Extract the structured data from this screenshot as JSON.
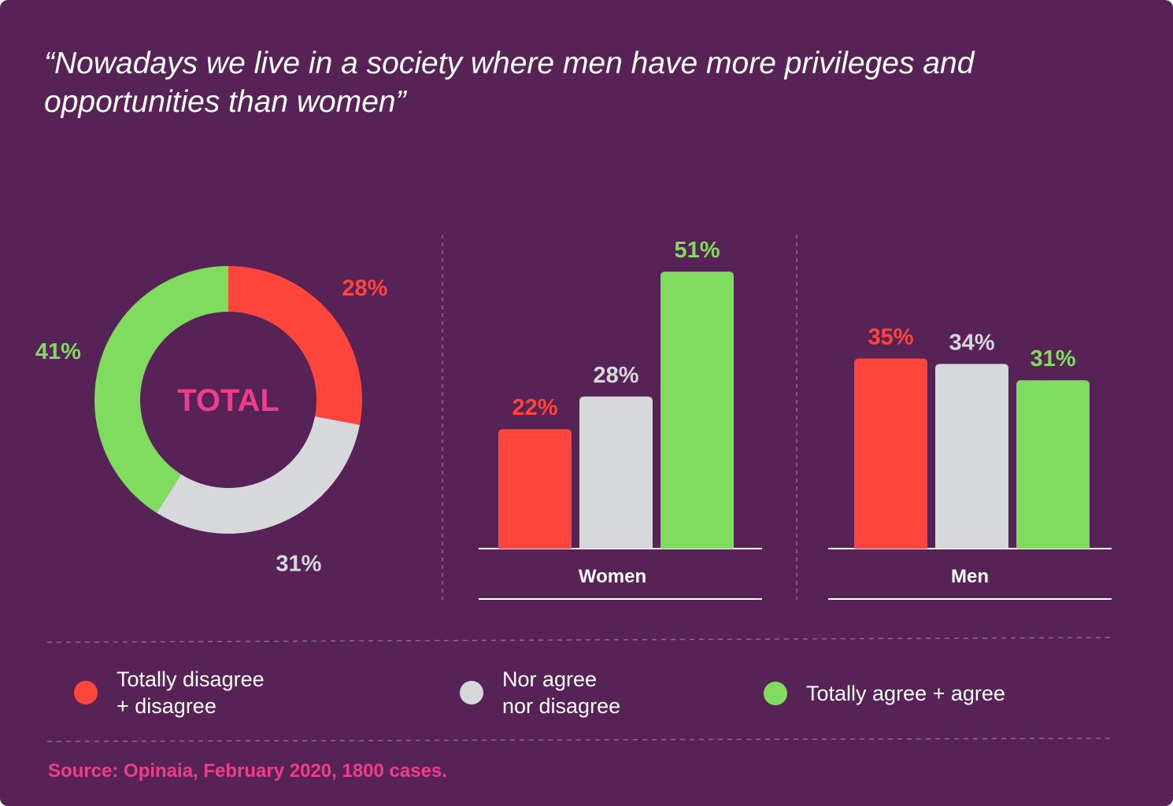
{
  "title": "“Nowadays we live in a society where men have more privileges and opportunities than women”",
  "colors": {
    "background": "#572256",
    "disagree": "#ff453c",
    "neutral": "#d7d8dc",
    "agree": "#80dc5f",
    "accent": "#ee3e8b"
  },
  "legend": [
    {
      "label": "Totally disagree\n+ disagree",
      "color": "#ff453c"
    },
    {
      "label": "Nor agree\nnor disagree",
      "color": "#d7d8dc"
    },
    {
      "label": "Totally agree + agree",
      "color": "#80dc5f"
    }
  ],
  "source": "Source: Opinaia, February 2020, 1800 cases.",
  "chart_data": [
    {
      "type": "pie",
      "center_label": "TOTAL",
      "slices": [
        {
          "name": "Totally disagree + disagree",
          "value": 28,
          "label": "28%",
          "color": "#ff453c"
        },
        {
          "name": "Nor agree nor disagree",
          "value": 31,
          "label": "31%",
          "color": "#d7d8dc"
        },
        {
          "name": "Totally agree + agree",
          "value": 41,
          "label": "41%",
          "color": "#80dc5f"
        }
      ]
    },
    {
      "type": "bar",
      "categories": [
        "Women",
        "Men"
      ],
      "series": [
        {
          "name": "Totally disagree + disagree",
          "color": "#ff453c",
          "values": [
            22,
            35
          ],
          "labels": [
            "22%",
            "35%"
          ]
        },
        {
          "name": "Nor agree nor disagree",
          "color": "#d7d8dc",
          "values": [
            28,
            34
          ],
          "labels": [
            "28%",
            "34%"
          ]
        },
        {
          "name": "Totally agree + agree",
          "color": "#80dc5f",
          "values": [
            51,
            31
          ],
          "labels": [
            "51%",
            "31%"
          ]
        }
      ]
    }
  ]
}
